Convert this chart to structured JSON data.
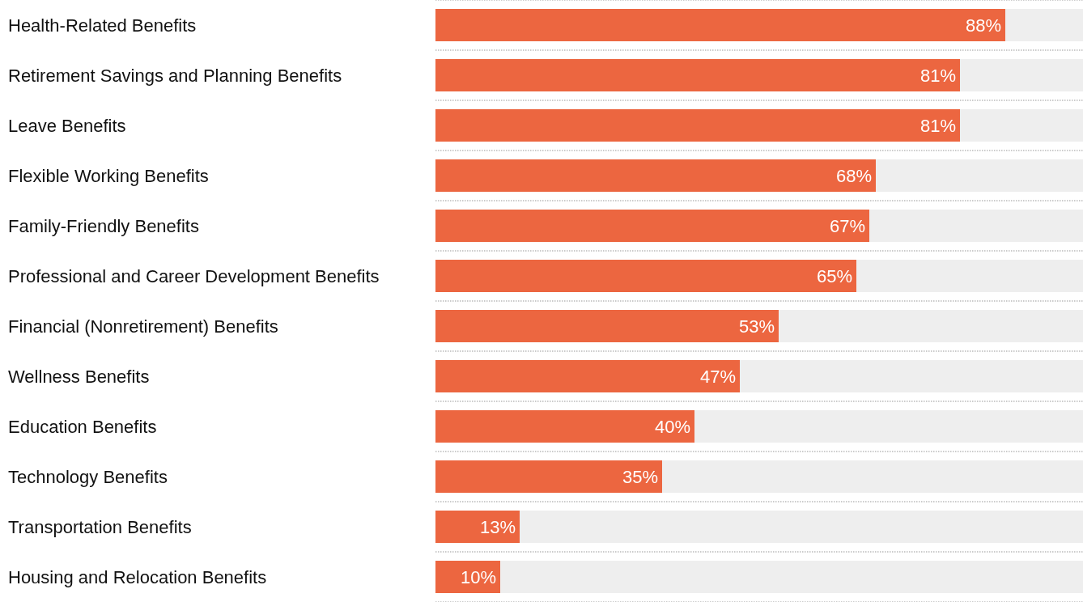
{
  "chart_data": {
    "type": "bar",
    "orientation": "horizontal",
    "categories": [
      "Health-Related Benefits",
      "Retirement Savings and Planning Benefits",
      "Leave Benefits",
      "Flexible Working Benefits",
      "Family-Friendly Benefits",
      "Professional and Career Development Benefits",
      "Financial (Nonretirement) Benefits",
      "Wellness Benefits",
      "Education Benefits",
      "Technology Benefits",
      "Transportation Benefits",
      "Housing and Relocation Benefits"
    ],
    "values": [
      88,
      81,
      81,
      68,
      67,
      65,
      53,
      47,
      40,
      35,
      13,
      10
    ],
    "value_labels": [
      "88%",
      "81%",
      "81%",
      "68%",
      "67%",
      "65%",
      "53%",
      "47%",
      "40%",
      "35%",
      "13%",
      "10%"
    ],
    "color": "#ec6640",
    "xlim": [
      0,
      100
    ],
    "tick_labels": "y",
    "grid": "y"
  }
}
